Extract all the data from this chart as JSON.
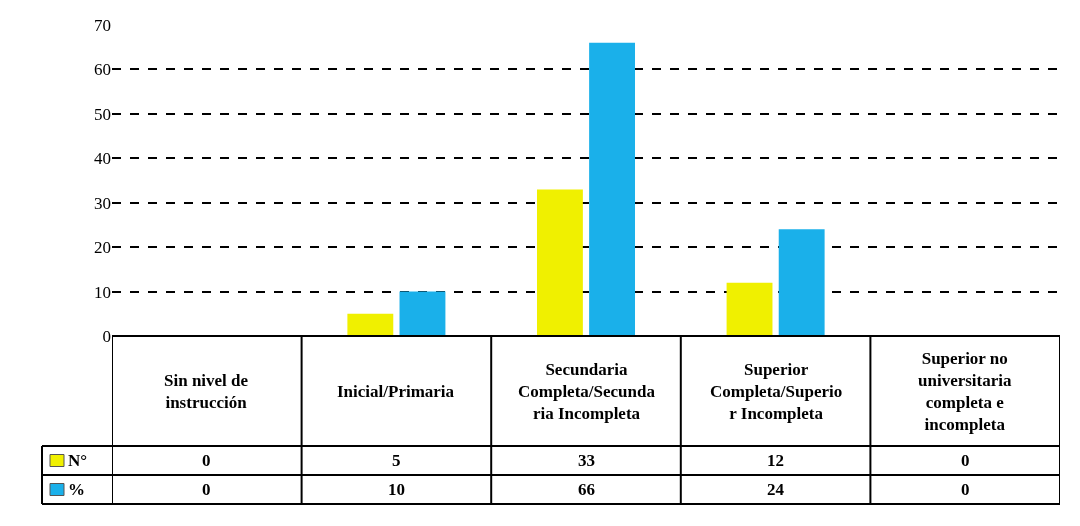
{
  "chart_data": {
    "type": "bar",
    "categories": [
      "Sin nivel de instrucción",
      "Inicial/Primaria",
      "Secundaria Completa/Secundaria Incompleta",
      "Superior Completa/Superior Incompleta",
      "Superior no universitaria completa e incompleta"
    ],
    "series": [
      {
        "name": "N°",
        "color": "#f0f000",
        "values": [
          0,
          5,
          33,
          12,
          0
        ]
      },
      {
        "name": "%",
        "color": "#1ab0ea",
        "values": [
          0,
          10,
          66,
          24,
          0
        ]
      }
    ],
    "ylim": [
      0,
      70
    ],
    "yticks": [
      0,
      10,
      20,
      30,
      40,
      50,
      60,
      70
    ],
    "grid": "y",
    "data_labels": true,
    "legend": "bottom left"
  }
}
